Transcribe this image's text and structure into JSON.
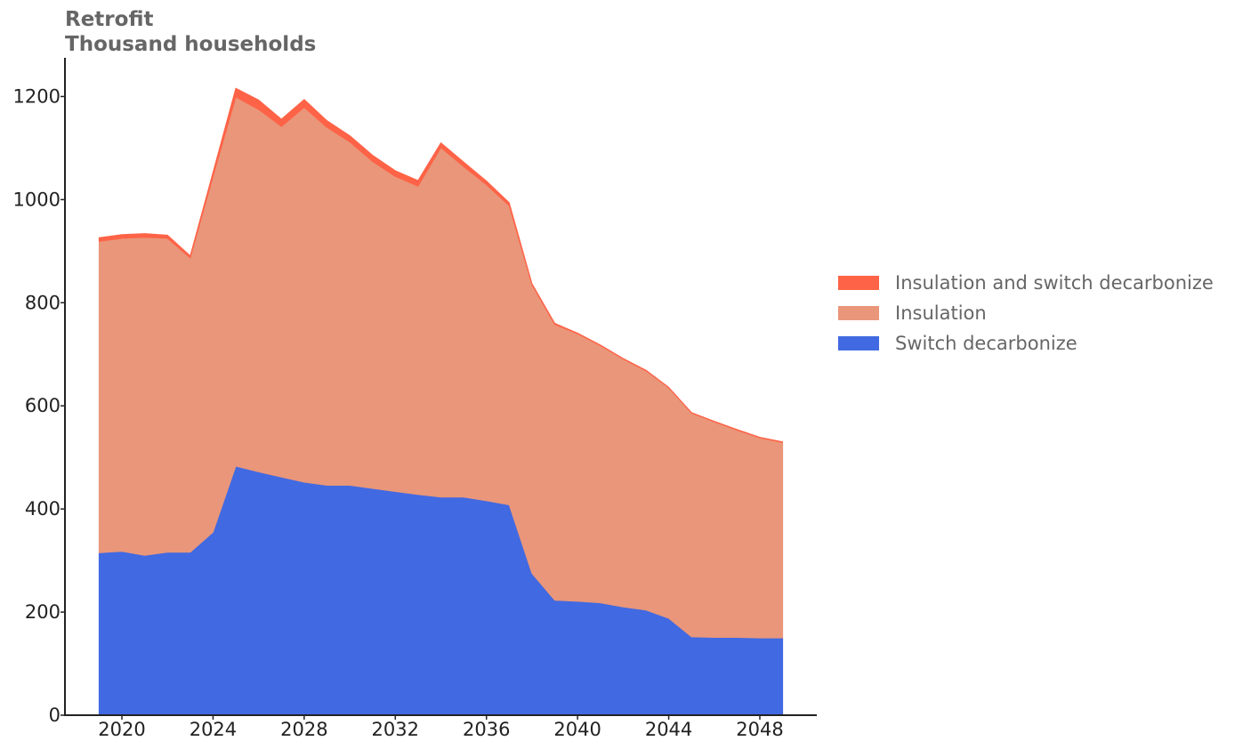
{
  "chart_data": {
    "type": "area",
    "stacked": true,
    "title": "Retrofit",
    "subtitle": "Thousand households",
    "x": [
      2019,
      2020,
      2021,
      2022,
      2023,
      2024,
      2025,
      2026,
      2027,
      2028,
      2029,
      2030,
      2031,
      2032,
      2033,
      2034,
      2035,
      2036,
      2037,
      2038,
      2039,
      2040,
      2041,
      2042,
      2043,
      2044,
      2045,
      2046,
      2047,
      2048,
      2049
    ],
    "series": [
      {
        "name": "Switch decarbonize",
        "color": "#4169e1",
        "values": [
          315,
          318,
          310,
          316,
          316,
          355,
          483,
          472,
          462,
          452,
          446,
          446,
          440,
          434,
          428,
          423,
          423,
          416,
          408,
          275,
          223,
          221,
          218,
          210,
          204,
          188,
          152,
          151,
          151,
          150,
          150
        ]
      },
      {
        "name": "Insulation",
        "color": "#e9967a",
        "values": [
          604,
          607,
          617,
          609,
          571,
          690,
          716,
          703,
          680,
          727,
          694,
          666,
          634,
          611,
          598,
          678,
          641,
          613,
          580,
          560,
          535,
          519,
          499,
          481,
          464,
          447,
          434,
          418,
          402,
          388,
          379
        ]
      },
      {
        "name": "Insulation and switch decarbonize",
        "color": "#ff6347",
        "values": [
          7,
          7,
          7,
          6,
          4,
          8,
          17,
          18,
          14,
          15,
          13,
          12,
          12,
          11,
          11,
          9,
          9,
          7,
          6,
          2,
          2,
          1,
          1,
          1,
          1,
          1,
          1,
          1,
          1,
          1,
          1
        ]
      }
    ],
    "xticks": [
      2020,
      2024,
      2028,
      2032,
      2036,
      2040,
      2044,
      2048
    ],
    "yticks": [
      0,
      200,
      400,
      600,
      800,
      1000,
      1200
    ],
    "xlim": [
      2017.5,
      2050.5
    ],
    "ylim": [
      0,
      1275
    ],
    "xlabel": "",
    "ylabel": "",
    "grid": false,
    "legend_position": "right",
    "legend_order": [
      "Insulation and switch decarbonize",
      "Insulation",
      "Switch decarbonize"
    ]
  }
}
